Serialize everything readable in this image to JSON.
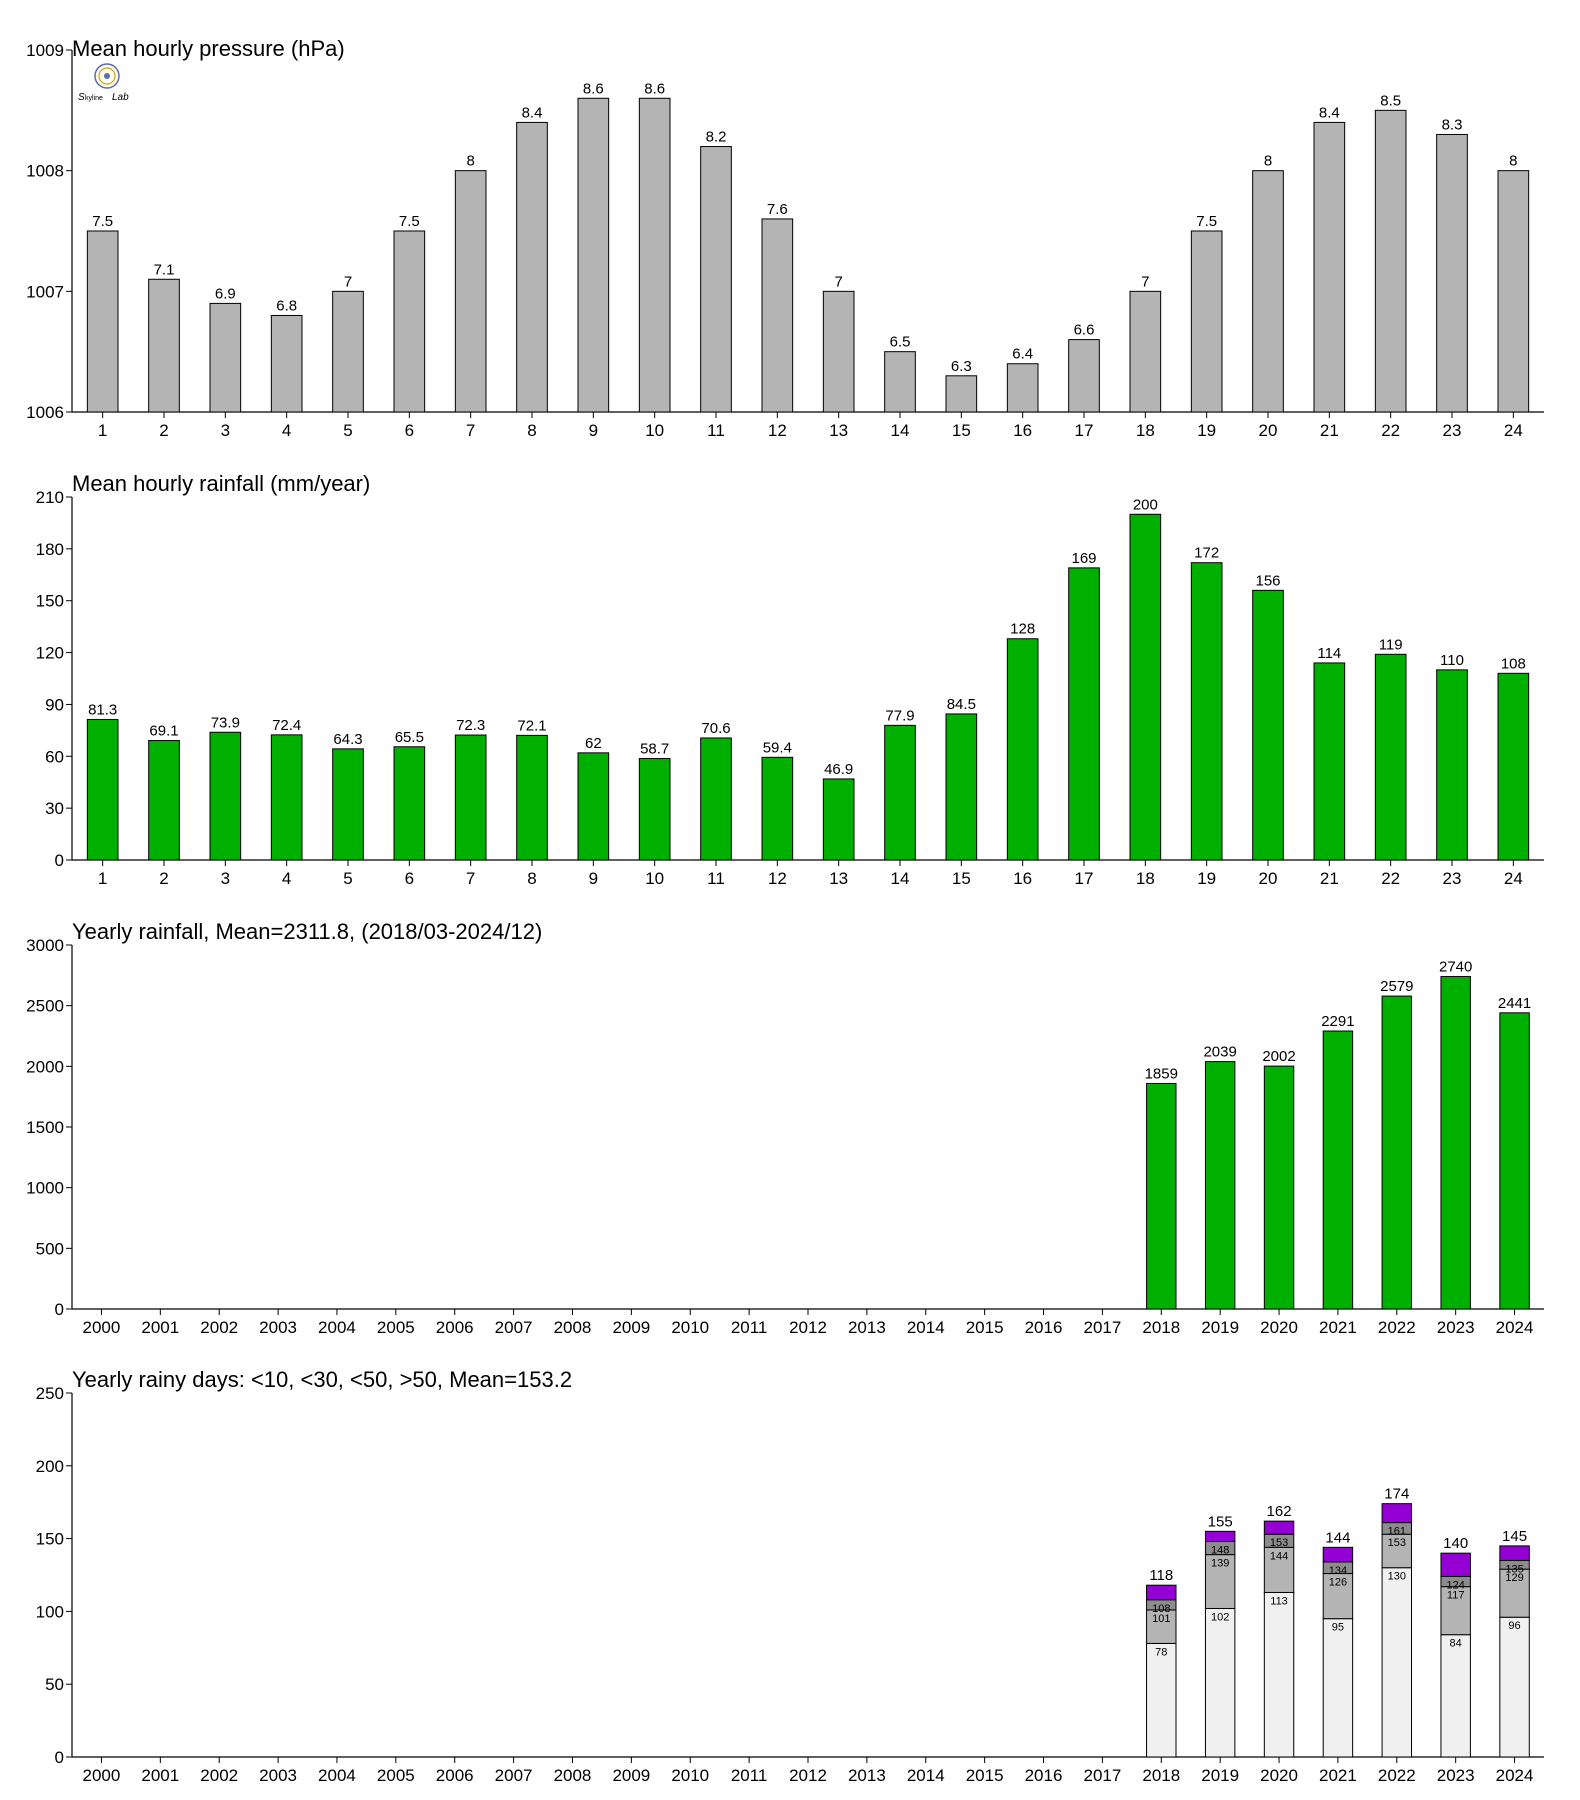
{
  "logo": {
    "text": "SkyLab"
  },
  "colors": {
    "pressure_bar": "#b4b4b4",
    "rain_bar": "#00b000",
    "days_lt10": "#f0f0f0",
    "days_lt30": "#b4b4b4",
    "days_lt50": "#8c8c8c",
    "days_gt50": "#9400d3",
    "axis": "#000000"
  },
  "chart_data": [
    {
      "type": "bar",
      "title": "Mean hourly pressure (hPa)",
      "categories": [
        "1",
        "2",
        "3",
        "4",
        "5",
        "6",
        "7",
        "8",
        "9",
        "10",
        "11",
        "12",
        "13",
        "14",
        "15",
        "16",
        "17",
        "18",
        "19",
        "20",
        "21",
        "22",
        "23",
        "24"
      ],
      "values": [
        1007.5,
        1007.1,
        1006.9,
        1006.8,
        1007.0,
        1007.5,
        1008.0,
        1008.4,
        1008.6,
        1008.6,
        1008.2,
        1007.6,
        1007.0,
        1006.5,
        1006.3,
        1006.4,
        1006.6,
        1007.0,
        1007.5,
        1008.0,
        1008.4,
        1008.5,
        1008.3,
        1008.0
      ],
      "labels": [
        "7.5",
        "7.1",
        "6.9",
        "6.8",
        "7",
        "7.5",
        "8",
        "8.4",
        "8.6",
        "8.6",
        "8.2",
        "7.6",
        "7",
        "6.5",
        "6.3",
        "6.4",
        "6.6",
        "7",
        "7.5",
        "8",
        "8.4",
        "8.5",
        "8.3",
        "8"
      ],
      "ylim": [
        1006,
        1009
      ],
      "yticks": [
        "1006",
        "1007",
        "1008",
        "1009"
      ],
      "color": "#b4b4b4"
    },
    {
      "type": "bar",
      "title": "Mean hourly rainfall (mm/year)",
      "categories": [
        "1",
        "2",
        "3",
        "4",
        "5",
        "6",
        "7",
        "8",
        "9",
        "10",
        "11",
        "12",
        "13",
        "14",
        "15",
        "16",
        "17",
        "18",
        "19",
        "20",
        "21",
        "22",
        "23",
        "24"
      ],
      "values": [
        81.3,
        69.1,
        73.9,
        72.4,
        64.3,
        65.5,
        72.3,
        72.1,
        62,
        58.7,
        70.6,
        59.4,
        46.9,
        77.9,
        84.5,
        128,
        169,
        200,
        172,
        156,
        114,
        119,
        110,
        108
      ],
      "labels": [
        "81.3",
        "69.1",
        "73.9",
        "72.4",
        "64.3",
        "65.5",
        "72.3",
        "72.1",
        "62",
        "58.7",
        "70.6",
        "59.4",
        "46.9",
        "77.9",
        "84.5",
        "128",
        "169",
        "200",
        "172",
        "156",
        "114",
        "119",
        "110",
        "108"
      ],
      "ylim": [
        0,
        210
      ],
      "yticks": [
        "0",
        "30",
        "60",
        "90",
        "120",
        "150",
        "180",
        "210"
      ],
      "color": "#00b000"
    },
    {
      "type": "bar",
      "title": "Yearly rainfall, Mean=2311.8, (2018/03-2024/12)",
      "categories": [
        "2000",
        "2001",
        "2002",
        "2003",
        "2004",
        "2005",
        "2006",
        "2007",
        "2008",
        "2009",
        "2010",
        "2011",
        "2012",
        "2013",
        "2014",
        "2015",
        "2016",
        "2017",
        "2018",
        "2019",
        "2020",
        "2021",
        "2022",
        "2023",
        "2024"
      ],
      "values": [
        null,
        null,
        null,
        null,
        null,
        null,
        null,
        null,
        null,
        null,
        null,
        null,
        null,
        null,
        null,
        null,
        null,
        null,
        1859,
        2039,
        2002,
        2291,
        2579,
        2740,
        2441
      ],
      "labels": [
        "",
        "",
        "",
        "",
        "",
        "",
        "",
        "",
        "",
        "",
        "",
        "",
        "",
        "",
        "",
        "",
        "",
        "",
        "1859",
        "2039",
        "2002",
        "2291",
        "2579",
        "2740",
        "2441"
      ],
      "ylim": [
        0,
        3000
      ],
      "yticks": [
        "0",
        "500",
        "1000",
        "1500",
        "2000",
        "2500",
        "3000"
      ],
      "color": "#00b000"
    },
    {
      "type": "bar",
      "stacked": true,
      "title": "Yearly rainy days: <10, <30, <50, >50, Mean=153.2",
      "categories": [
        "2000",
        "2001",
        "2002",
        "2003",
        "2004",
        "2005",
        "2006",
        "2007",
        "2008",
        "2009",
        "2010",
        "2011",
        "2012",
        "2013",
        "2014",
        "2015",
        "2016",
        "2017",
        "2018",
        "2019",
        "2020",
        "2021",
        "2022",
        "2023",
        "2024"
      ],
      "cumulative": [
        null,
        null,
        null,
        null,
        null,
        null,
        null,
        null,
        null,
        null,
        null,
        null,
        null,
        null,
        null,
        null,
        null,
        null,
        [
          78,
          101,
          108,
          118
        ],
        [
          102,
          139,
          148,
          155
        ],
        [
          113,
          144,
          153,
          162
        ],
        [
          95,
          126,
          134,
          144
        ],
        [
          130,
          153,
          161,
          174
        ],
        [
          84,
          117,
          124,
          140
        ],
        [
          96,
          129,
          135,
          145
        ]
      ],
      "ylim": [
        0,
        250
      ],
      "yticks": [
        "0",
        "50",
        "100",
        "150",
        "200",
        "250"
      ]
    }
  ]
}
